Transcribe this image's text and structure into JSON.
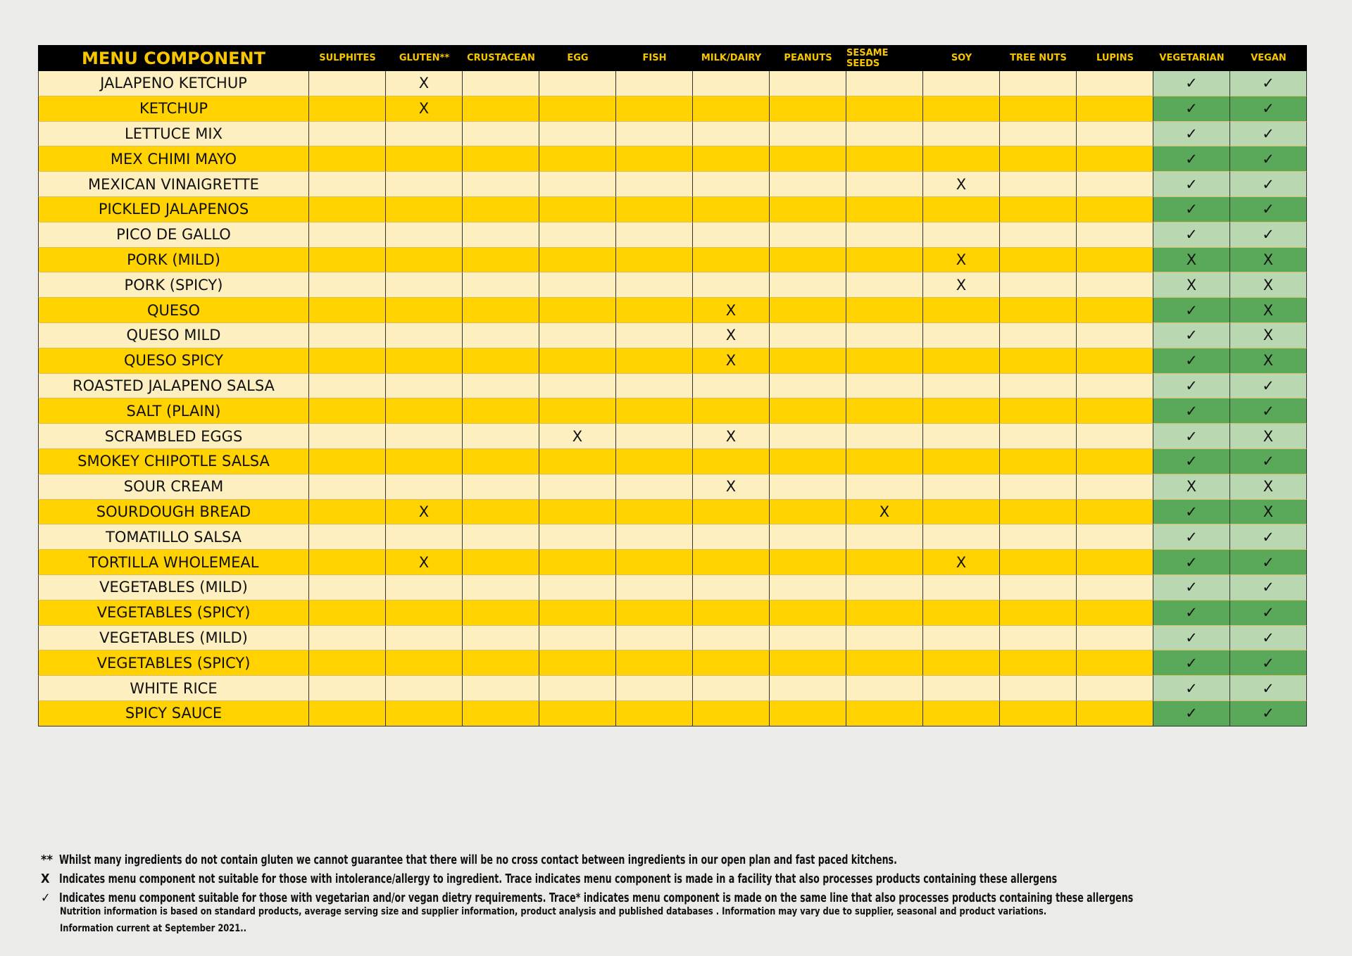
{
  "table": {
    "header": [
      "MENU COMPONENT",
      "SULPHITES",
      "GLUTEN**",
      "CRUSTACEAN",
      "EGG",
      "FISH",
      "MILK/DAIRY",
      "PEANUTS",
      "SESAME SEEDS",
      "SOY",
      "TREE NUTS",
      "LUPINS",
      "VEGETARIAN",
      "VEGAN"
    ],
    "rows": [
      [
        "JALAPENO KETCHUP",
        null,
        "X",
        null,
        null,
        null,
        null,
        null,
        null,
        null,
        null,
        null,
        "✓",
        "✓"
      ],
      [
        "KETCHUP",
        null,
        "X",
        null,
        null,
        null,
        null,
        null,
        null,
        null,
        null,
        null,
        "✓",
        "✓"
      ],
      [
        "LETTUCE MIX",
        null,
        null,
        null,
        null,
        null,
        null,
        null,
        null,
        null,
        null,
        null,
        "✓",
        "✓"
      ],
      [
        "MEX CHIMI MAYO",
        null,
        null,
        null,
        null,
        null,
        null,
        null,
        null,
        null,
        null,
        null,
        "✓",
        "✓"
      ],
      [
        "MEXICAN VINAIGRETTE",
        null,
        null,
        null,
        null,
        null,
        null,
        null,
        null,
        "X",
        null,
        null,
        "✓",
        "✓"
      ],
      [
        "PICKLED JALAPENOS",
        null,
        null,
        null,
        null,
        null,
        null,
        null,
        null,
        null,
        null,
        null,
        "✓",
        "✓"
      ],
      [
        "PICO DE GALLO",
        null,
        null,
        null,
        null,
        null,
        null,
        null,
        null,
        null,
        null,
        null,
        "✓",
        "✓"
      ],
      [
        "PORK (MILD)",
        null,
        null,
        null,
        null,
        null,
        null,
        null,
        null,
        "X",
        null,
        null,
        "X",
        "X"
      ],
      [
        "PORK (SPICY)",
        null,
        null,
        null,
        null,
        null,
        null,
        null,
        null,
        "X",
        null,
        null,
        "X",
        "X"
      ],
      [
        "QUESO",
        null,
        null,
        null,
        null,
        null,
        "X",
        null,
        null,
        null,
        null,
        null,
        "✓",
        "X"
      ],
      [
        "QUESO MILD",
        null,
        null,
        null,
        null,
        null,
        "X",
        null,
        null,
        null,
        null,
        null,
        "✓",
        "X"
      ],
      [
        "QUESO SPICY",
        null,
        null,
        null,
        null,
        null,
        "X",
        null,
        null,
        null,
        null,
        null,
        "✓",
        "X"
      ],
      [
        "ROASTED JALAPENO SALSA",
        null,
        null,
        null,
        null,
        null,
        null,
        null,
        null,
        null,
        null,
        null,
        "✓",
        "✓"
      ],
      [
        "SALT (PLAIN)",
        null,
        null,
        null,
        null,
        null,
        null,
        null,
        null,
        null,
        null,
        null,
        "✓",
        "✓"
      ],
      [
        "SCRAMBLED EGGS",
        null,
        null,
        null,
        "X",
        null,
        "X",
        null,
        null,
        null,
        null,
        null,
        "✓",
        "X"
      ],
      [
        "SMOKEY CHIPOTLE SALSA",
        null,
        null,
        null,
        null,
        null,
        null,
        null,
        null,
        null,
        null,
        null,
        "✓",
        "✓"
      ],
      [
        "SOUR CREAM",
        null,
        null,
        null,
        null,
        null,
        "X",
        null,
        null,
        null,
        null,
        null,
        "X",
        "X"
      ],
      [
        "SOURDOUGH BREAD",
        null,
        "X",
        null,
        null,
        null,
        null,
        null,
        "X",
        null,
        null,
        null,
        "✓",
        "X"
      ],
      [
        "TOMATILLO SALSA",
        null,
        null,
        null,
        null,
        null,
        null,
        null,
        null,
        null,
        null,
        null,
        "✓",
        "✓"
      ],
      [
        "TORTILLA WHOLEMEAL",
        null,
        "X",
        null,
        null,
        null,
        null,
        null,
        null,
        "X",
        null,
        null,
        "✓",
        "✓"
      ],
      [
        "VEGETABLES (MILD)",
        null,
        null,
        null,
        null,
        null,
        null,
        null,
        null,
        null,
        null,
        null,
        "✓",
        "✓"
      ],
      [
        "VEGETABLES (SPICY)",
        null,
        null,
        null,
        null,
        null,
        null,
        null,
        null,
        null,
        null,
        null,
        "✓",
        "✓"
      ],
      [
        "VEGETABLES (MILD)",
        null,
        null,
        null,
        null,
        null,
        null,
        null,
        null,
        null,
        null,
        null,
        "✓",
        "✓"
      ],
      [
        "VEGETABLES (SPICY)",
        null,
        null,
        null,
        null,
        null,
        null,
        null,
        null,
        null,
        null,
        null,
        "✓",
        "✓"
      ],
      [
        "WHITE RICE",
        null,
        null,
        null,
        null,
        null,
        null,
        null,
        null,
        null,
        null,
        null,
        "✓",
        "✓"
      ],
      [
        "SPICY SAUCE",
        null,
        null,
        null,
        null,
        null,
        null,
        null,
        null,
        null,
        null,
        null,
        "✓",
        "✓"
      ]
    ]
  },
  "footnotes": [
    {
      "marker": "**",
      "text": "Whilst many ingredients do not contain gluten we cannot guarantee that there will be no cross contact between ingredients in our open plan and fast paced kitchens."
    },
    {
      "marker": "X",
      "text": "Indicates menu component not suitable for those with intolerance/allergy to ingredient. Trace indicates menu component is made in a facility that also processes products containing these allergens"
    },
    {
      "marker": "✓",
      "text": "Indicates menu component suitable for those with vegetarian and/or vegan dietry requirements. Trace* indicates menu component is made on the same line that also processes products containing these allergens"
    }
  ],
  "notes": [
    "Nutrition information is based on standard products, average serving size and supplier information, product analysis and published databases . Information may vary due to supplier, seasonal and product variations.",
    "Information current at September 2021.."
  ]
}
